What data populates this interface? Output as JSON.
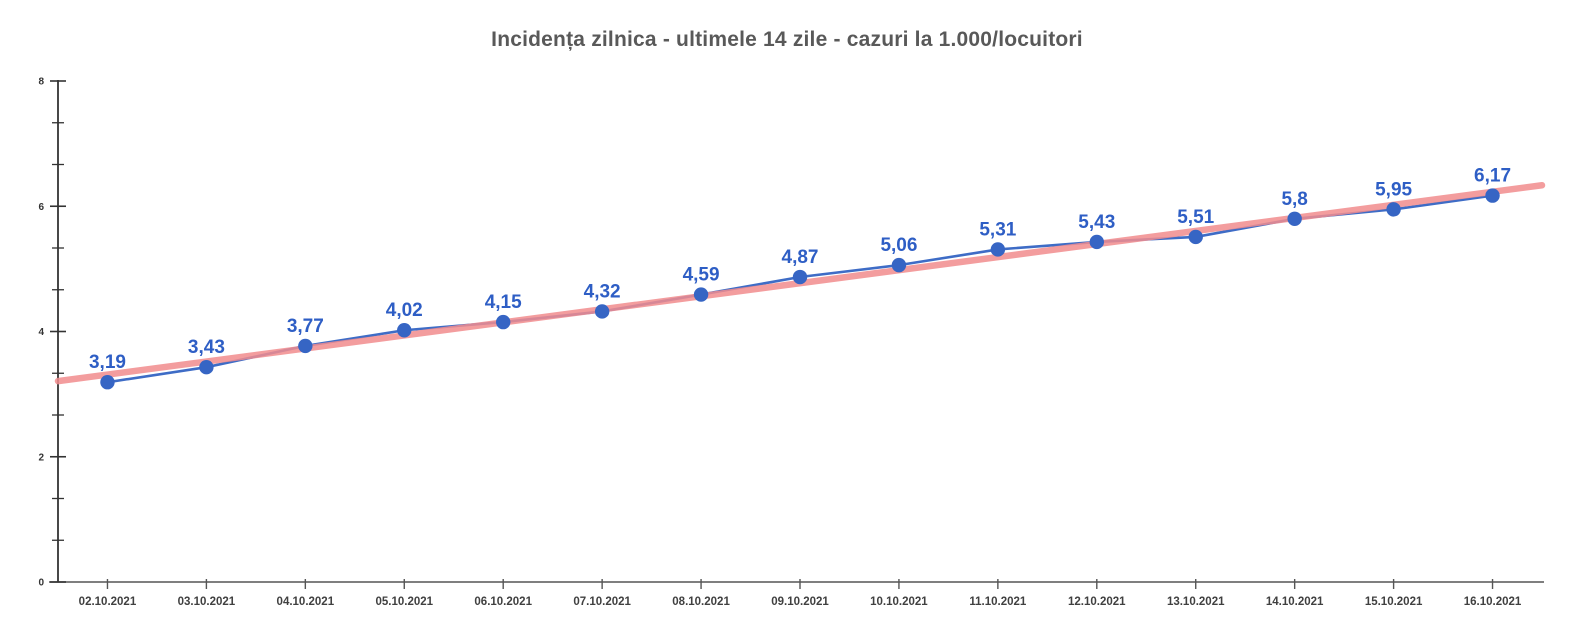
{
  "chart_data": {
    "type": "line",
    "title": "Incidența zilnica - ultimele 14 zile  - cazuri la 1.000/locuitori",
    "categories": [
      "02.10.2021",
      "03.10.2021",
      "04.10.2021",
      "05.10.2021",
      "06.10.2021",
      "07.10.2021",
      "08.10.2021",
      "09.10.2021",
      "10.10.2021",
      "11.10.2021",
      "12.10.2021",
      "13.10.2021",
      "14.10.2021",
      "15.10.2021",
      "16.10.2021"
    ],
    "series": [
      {
        "values": [
          3.19,
          3.43,
          3.77,
          4.02,
          4.15,
          4.32,
          4.59,
          4.87,
          5.06,
          5.31,
          5.43,
          5.51,
          5.8,
          5.95,
          6.17
        ],
        "labels": [
          "3,19",
          "3,43",
          "3,77",
          "4,02",
          "4,15",
          "4,32",
          "4,59",
          "4,87",
          "5,06",
          "5,31",
          "5,43",
          "5,51",
          "5,8",
          "5,95",
          "6,17"
        ],
        "color": "#3E6CC6",
        "marker_color": "#3665C4",
        "label_color": "#2E5EC5"
      }
    ],
    "trendline": {
      "type": "linear",
      "color": "#F28C8E",
      "opacity": 0.85
    },
    "xlabel": "",
    "ylabel": "",
    "ylim": [
      0,
      8
    ],
    "y_major_ticks": [
      0,
      2,
      4,
      6,
      8
    ],
    "y_minor_per_major": 3,
    "grid": false,
    "legend": false,
    "colors": {
      "title": "#595959",
      "y_axis": "#333333",
      "x_axis": "#555555"
    }
  }
}
